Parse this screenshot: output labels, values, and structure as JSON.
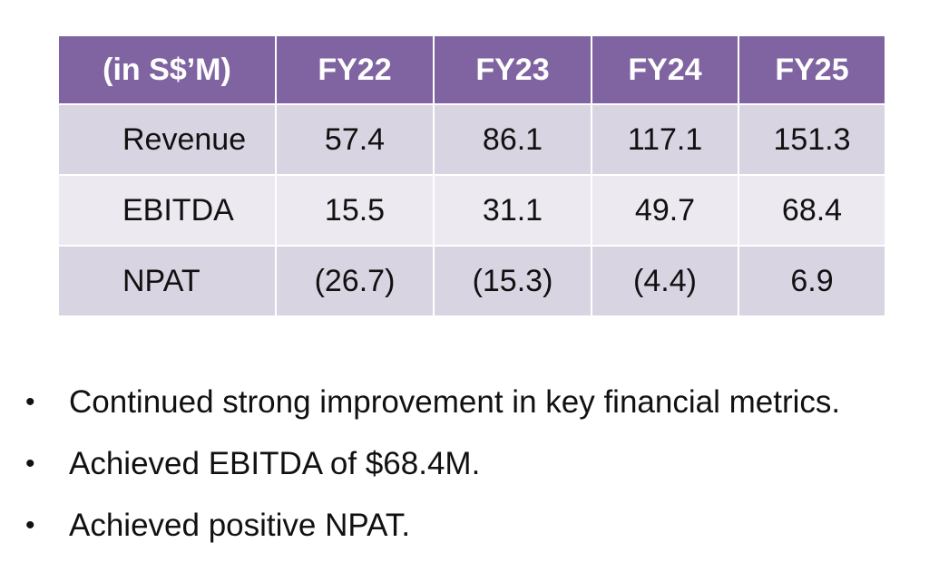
{
  "table": {
    "header": {
      "label": "(in S$’M)",
      "years": [
        "FY22",
        "FY23",
        "FY24",
        "FY25"
      ]
    },
    "rows": [
      {
        "label": "Revenue",
        "values": [
          "57.4",
          "86.1",
          "117.1",
          "151.3"
        ]
      },
      {
        "label": "EBITDA",
        "values": [
          "15.5",
          "31.1",
          "49.7",
          "68.4"
        ]
      },
      {
        "label": "NPAT",
        "values": [
          "(26.7)",
          "(15.3)",
          "(4.4)",
          "6.9"
        ]
      }
    ]
  },
  "bullets": [
    "Continued strong improvement in key financial metrics.",
    "Achieved EBITDA of $68.4M.",
    "Achieved positive NPAT."
  ],
  "bullet_symbol": "•",
  "colors": {
    "header_bg": "#8064a2",
    "row_odd_bg": "#d9d4e1",
    "row_even_bg": "#ece9f0"
  }
}
